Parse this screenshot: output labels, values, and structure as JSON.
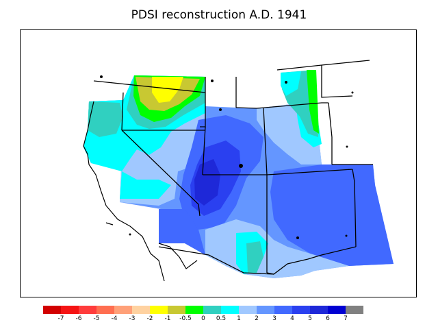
{
  "title": "PDSI reconstruction A.D. 1941",
  "colors": {
    "ocean": "#ffffff",
    "outline": "#000000",
    "c_m1": "#c8c832",
    "c_m2": "#ffff00",
    "c_m05": "#00ff00",
    "c_0": "#30d0c0",
    "c_05": "#00ffff",
    "c_1": "#a0c8ff",
    "c_2": "#6496ff",
    "c_3": "#4169ff",
    "c_4": "#2a40f0",
    "c_5": "#1e28d8"
  },
  "legend": {
    "swatches": [
      "#d20000",
      "#f51414",
      "#ff3c3c",
      "#ff6e50",
      "#ffa078",
      "#ffd2a0",
      "#ffff00",
      "#c8c832",
      "#00ff00",
      "#30d0c0",
      "#00ffff",
      "#a0c8ff",
      "#6496ff",
      "#4169ff",
      "#2a40f0",
      "#1e28d8",
      "#0000d2",
      "#808080"
    ],
    "labels": [
      "-7",
      "-6",
      "-5",
      "-4",
      "-3",
      "-2",
      "-1",
      "-0.5",
      "0",
      "0.5",
      "1",
      "2",
      "3",
      "4",
      "5",
      "6",
      "7"
    ]
  }
}
